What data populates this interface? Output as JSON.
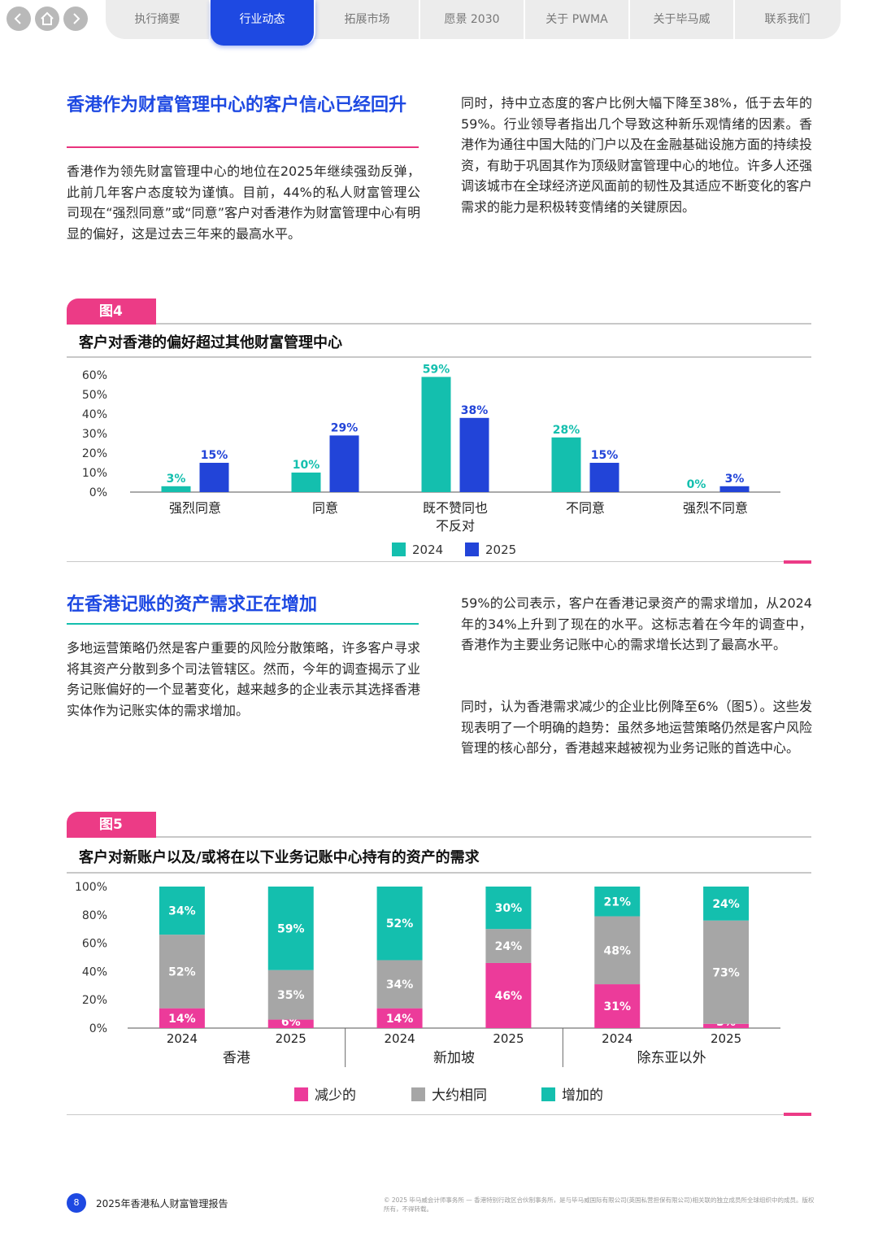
{
  "nav": {
    "back_icon": "chevron-left-icon",
    "home_icon": "home-icon",
    "forward_icon": "chevron-right-icon",
    "tabs": [
      "执行摘要",
      "行业动态",
      "拓展市场",
      "愿景 2030",
      "关于 PWMA",
      "关于毕马威",
      "联系我们"
    ],
    "active_tab": 1
  },
  "section1": {
    "heading": "香港作为财富管理中心的客户信心已经回升",
    "left_para": "香港作为领先财富管理中心的地位在2025年继续强劲反弹，此前几年客户态度较为谨慎。目前，44%的私人财富管理公司现在“强烈同意”或“同意”客户对香港作为财富管理中心有明显的偏好，这是过去三年来的最高水平。",
    "right_para": "同时，持中立态度的客户比例大幅下降至38%，低于去年的59%。行业领导者指出几个导致这种新乐观情绪的因素。香港作为通往中国大陆的门户以及在金融基础设施方面的持续投资，有助于巩固其作为顶级财富管理中心的地位。许多人还强调该城市在全球经济逆风面前的韧性及其适应不断变化的客户需求的能力是积极转变情绪的关键原因。"
  },
  "figure4": {
    "tag": "图4",
    "title": "客户对香港的偏好超过其他财富管理中心",
    "chart_data": {
      "type": "bar",
      "categories": [
        "强烈同意",
        "同意",
        "既不赞同也不反对",
        "不同意",
        "强烈不同意"
      ],
      "category_lines": [
        [
          "强烈同意"
        ],
        [
          "同意"
        ],
        [
          "既不赞同也",
          "不反对"
        ],
        [
          "不同意"
        ],
        [
          "强烈不同意"
        ]
      ],
      "series": [
        {
          "name": "2024",
          "color": "#14bfae",
          "values": [
            3,
            10,
            59,
            28,
            0
          ]
        },
        {
          "name": "2025",
          "color": "#2244d8",
          "values": [
            15,
            29,
            38,
            15,
            3
          ]
        }
      ],
      "yticks": [
        "0%",
        "10%",
        "20%",
        "30%",
        "40%",
        "50%",
        "60%"
      ],
      "ylim": [
        0,
        60
      ],
      "legend": "bottom-center"
    }
  },
  "section2": {
    "heading": "在香港记账的资产需求正在增加",
    "left_para": "多地运营策略仍然是客户重要的风险分散策略，许多客户寻求将其资产分散到多个司法管辖区。然而，今年的调查揭示了业务记账偏好的一个显著变化，越来越多的企业表示其选择香港实体作为记账实体的需求增加。",
    "right_para_1": "59%的公司表示，客户在香港记录资产的需求增加，从2024年的34%上升到了现在的水平。这标志着在今年的调查中，香港作为主要业务记账中心的需求增长达到了最高水平。",
    "right_para_2": "同时，认为香港需求减少的企业比例降至6%（图5）。这些发现表明了一个明确的趋势：虽然多地运营策略仍然是客户风险管理的核心部分，香港越来越被视为业务记账的首选中心。"
  },
  "figure5": {
    "tag": "图5",
    "title": "客户对新账户以及/或将在以下业务记账中心持有的资产的需求",
    "chart_data": {
      "type": "bar",
      "stacked": true,
      "groups": [
        "香港",
        "新加坡",
        "除东亚以外"
      ],
      "categories": [
        "2024",
        "2025",
        "2024",
        "2025",
        "2024",
        "2025"
      ],
      "series": [
        {
          "name": "减少的",
          "color": "#ec3b9a",
          "values": [
            14,
            6,
            14,
            46,
            31,
            3
          ]
        },
        {
          "name": "大约相同",
          "color": "#a6a6a6",
          "values": [
            52,
            35,
            34,
            24,
            48,
            73
          ]
        },
        {
          "name": "增加的",
          "color": "#14bfae",
          "values": [
            34,
            59,
            52,
            30,
            21,
            24
          ]
        }
      ],
      "yticks": [
        "0%",
        "20%",
        "40%",
        "60%",
        "80%",
        "100%"
      ],
      "ylim": [
        0,
        100
      ],
      "legend": "bottom-center"
    }
  },
  "footer": {
    "page_number": "8",
    "report_title": "2025年香港私人财富管理报告",
    "copyright": "© 2025 毕马威会计师事务所 — 香港特别行政区合伙制事务所，是与毕马威国际有限公司(英国私营担保有限公司)相关联的独立成员所全球组织中的成员。版权所有，不得转载。"
  }
}
